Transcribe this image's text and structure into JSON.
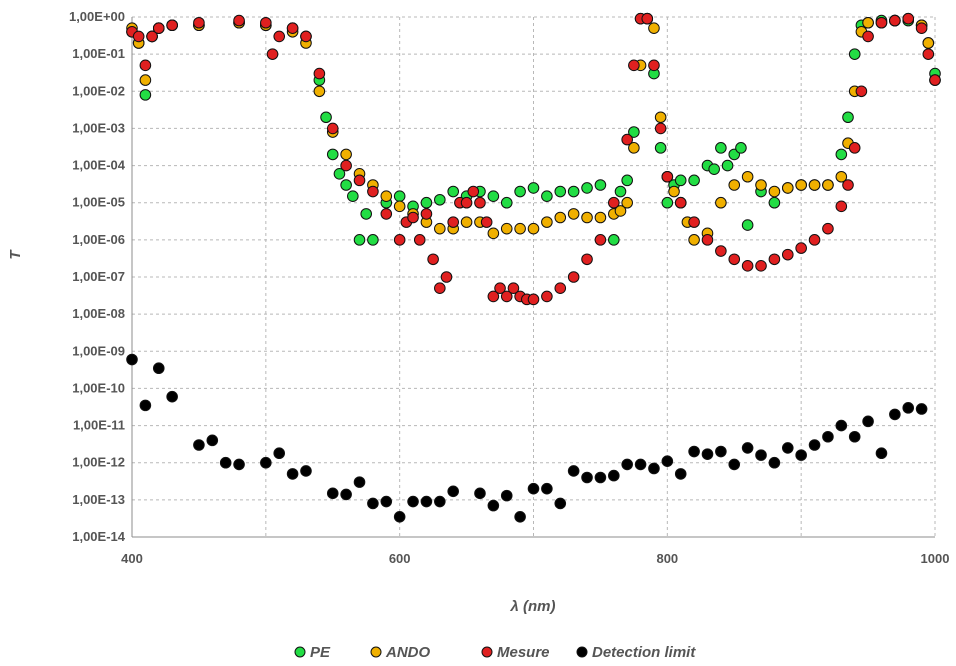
{
  "chart_data": {
    "type": "scatter",
    "xlabel": "λ (nm)",
    "ylabel": "T",
    "xlim": [
      400,
      1000
    ],
    "ylim": [
      1e-14,
      1
    ],
    "yscale": "log",
    "grid": true,
    "legend_position": "bottom",
    "x_ticks": [
      "400",
      "600",
      "800",
      "1000"
    ],
    "y_ticks": [
      "1,00E+00",
      "1,00E-01",
      "1,00E-02",
      "1,00E-03",
      "1,00E-04",
      "1,00E-05",
      "1,00E-06",
      "1,00E-07",
      "1,00E-08",
      "1,00E-09",
      "1,00E-10",
      "1,00E-11",
      "1,00E-12",
      "1,00E-13",
      "1,00E-14"
    ],
    "series": [
      {
        "name": "PE",
        "color": "#22dd44",
        "x": [
          400,
          405,
          410,
          415,
          420,
          430,
          450,
          480,
          500,
          520,
          530,
          540,
          545,
          550,
          555,
          560,
          565,
          570,
          575,
          580,
          590,
          600,
          610,
          620,
          630,
          640,
          650,
          660,
          670,
          680,
          690,
          700,
          710,
          720,
          730,
          740,
          750,
          760,
          765,
          770,
          775,
          780,
          785,
          790,
          795,
          800,
          805,
          810,
          820,
          830,
          835,
          840,
          845,
          850,
          855,
          860,
          870,
          880,
          890,
          900,
          910,
          920,
          930,
          935,
          940,
          945,
          950,
          960,
          970,
          980,
          990,
          995,
          1000
        ],
        "y": [
          0.4,
          0.2,
          0.008,
          0.3,
          0.5,
          0.6,
          0.6,
          0.7,
          0.6,
          0.5,
          0.3,
          0.02,
          0.002,
          0.0002,
          6e-05,
          3e-05,
          1.5e-05,
          1e-06,
          5e-06,
          1e-06,
          1e-05,
          1.5e-05,
          8e-06,
          1e-05,
          1.2e-05,
          2e-05,
          1.5e-05,
          2e-05,
          1.5e-05,
          1e-05,
          2e-05,
          2.5e-05,
          1.5e-05,
          2e-05,
          2e-05,
          2.5e-05,
          3e-05,
          1e-06,
          2e-05,
          4e-05,
          0.0008,
          0.9,
          0.9,
          0.03,
          0.0003,
          1e-05,
          3e-05,
          4e-05,
          4e-05,
          0.0001,
          8e-05,
          0.0003,
          0.0001,
          0.0002,
          0.0003,
          2.5e-06,
          2e-05,
          1e-05,
          2.5e-05,
          3e-05,
          3e-05,
          3e-05,
          0.0002,
          0.002,
          0.1,
          0.6,
          0.7,
          0.8,
          0.8,
          0.8,
          0.6,
          0.2,
          0.03
        ]
      },
      {
        "name": "ANDO",
        "color": "#f0b000",
        "x": [
          400,
          405,
          410,
          415,
          420,
          430,
          450,
          480,
          500,
          520,
          530,
          540,
          550,
          560,
          570,
          580,
          590,
          600,
          610,
          620,
          630,
          640,
          650,
          660,
          670,
          680,
          690,
          700,
          710,
          720,
          730,
          740,
          750,
          760,
          765,
          770,
          775,
          780,
          785,
          790,
          795,
          800,
          805,
          810,
          815,
          820,
          830,
          840,
          850,
          860,
          870,
          880,
          890,
          900,
          910,
          920,
          930,
          935,
          940,
          945,
          950,
          960,
          970,
          980,
          990,
          995,
          1000
        ],
        "y": [
          0.5,
          0.2,
          0.02,
          0.3,
          0.5,
          0.6,
          0.6,
          0.7,
          0.6,
          0.4,
          0.2,
          0.01,
          0.0008,
          0.0002,
          6e-05,
          3e-05,
          1.5e-05,
          8e-06,
          5e-06,
          3e-06,
          2e-06,
          2e-06,
          3e-06,
          3e-06,
          1.5e-06,
          2e-06,
          2e-06,
          2e-06,
          3e-06,
          4e-06,
          5e-06,
          4e-06,
          4e-06,
          5e-06,
          6e-06,
          1e-05,
          0.0003,
          0.05,
          0.9,
          0.5,
          0.002,
          5e-05,
          2e-05,
          1e-05,
          3e-06,
          1e-06,
          1.5e-06,
          1e-05,
          3e-05,
          5e-05,
          3e-05,
          2e-05,
          2.5e-05,
          3e-05,
          3e-05,
          3e-05,
          5e-05,
          0.0004,
          0.01,
          0.4,
          0.7,
          0.7,
          0.8,
          0.9,
          0.6,
          0.2,
          0.02
        ]
      },
      {
        "name": "Mesure",
        "color": "#e02020",
        "x": [
          400,
          405,
          410,
          415,
          420,
          430,
          450,
          480,
          500,
          505,
          510,
          520,
          530,
          540,
          550,
          560,
          570,
          580,
          590,
          600,
          605,
          610,
          615,
          620,
          625,
          630,
          635,
          640,
          645,
          650,
          655,
          660,
          665,
          670,
          675,
          680,
          685,
          690,
          695,
          700,
          710,
          720,
          730,
          740,
          750,
          760,
          770,
          775,
          780,
          785,
          790,
          795,
          800,
          810,
          820,
          830,
          840,
          850,
          860,
          870,
          880,
          890,
          900,
          910,
          920,
          930,
          935,
          940,
          945,
          950,
          960,
          970,
          980,
          990,
          995,
          1000
        ],
        "y": [
          0.4,
          0.3,
          0.05,
          0.3,
          0.5,
          0.6,
          0.7,
          0.8,
          0.7,
          0.1,
          0.3,
          0.5,
          0.3,
          0.03,
          0.001,
          0.0001,
          4e-05,
          2e-05,
          5e-06,
          1e-06,
          3e-06,
          4e-06,
          1e-06,
          5e-06,
          3e-07,
          5e-08,
          1e-07,
          3e-06,
          1e-05,
          1e-05,
          2e-05,
          1e-05,
          3e-06,
          3e-08,
          5e-08,
          3e-08,
          5e-08,
          3e-08,
          2.5e-08,
          2.5e-08,
          3e-08,
          5e-08,
          1e-07,
          3e-07,
          1e-06,
          1e-05,
          0.0005,
          0.05,
          0.9,
          0.9,
          0.05,
          0.001,
          5e-05,
          1e-05,
          3e-06,
          1e-06,
          5e-07,
          3e-07,
          2e-07,
          2e-07,
          3e-07,
          4e-07,
          6e-07,
          1e-06,
          2e-06,
          8e-06,
          3e-05,
          0.0003,
          0.01,
          0.3,
          0.7,
          0.8,
          0.9,
          0.5,
          0.1,
          0.02
        ]
      },
      {
        "name": "Detection limit",
        "color": "#000000",
        "x": [
          400,
          410,
          420,
          430,
          450,
          460,
          470,
          480,
          500,
          510,
          520,
          530,
          550,
          560,
          570,
          580,
          590,
          600,
          610,
          620,
          630,
          640,
          660,
          670,
          680,
          690,
          700,
          710,
          720,
          730,
          740,
          750,
          760,
          770,
          780,
          790,
          800,
          810,
          820,
          830,
          840,
          850,
          860,
          870,
          880,
          890,
          900,
          910,
          920,
          930,
          940,
          950,
          960,
          970,
          980,
          990
        ],
        "y": [
          6e-10,
          3.5e-11,
          3.5e-10,
          6e-11,
          3e-12,
          4e-12,
          1e-12,
          9e-13,
          1e-12,
          1.8e-12,
          5e-13,
          6e-13,
          1.5e-13,
          1.4e-13,
          3e-13,
          8e-14,
          9e-14,
          3.5e-14,
          9e-14,
          9e-14,
          9e-14,
          1.7e-13,
          1.5e-13,
          7e-14,
          1.3e-13,
          3.5e-14,
          2e-13,
          2e-13,
          8e-14,
          6e-13,
          4e-13,
          4e-13,
          4.5e-13,
          9e-13,
          9e-13,
          7e-13,
          1.1e-12,
          5e-13,
          2e-12,
          1.7e-12,
          2e-12,
          9e-13,
          2.5e-12,
          1.6e-12,
          1e-12,
          2.5e-12,
          1.6e-12,
          3e-12,
          5e-12,
          1e-11,
          5e-12,
          1.3e-11,
          1.8e-12,
          2e-11,
          3e-11,
          2.8e-11
        ]
      }
    ]
  }
}
